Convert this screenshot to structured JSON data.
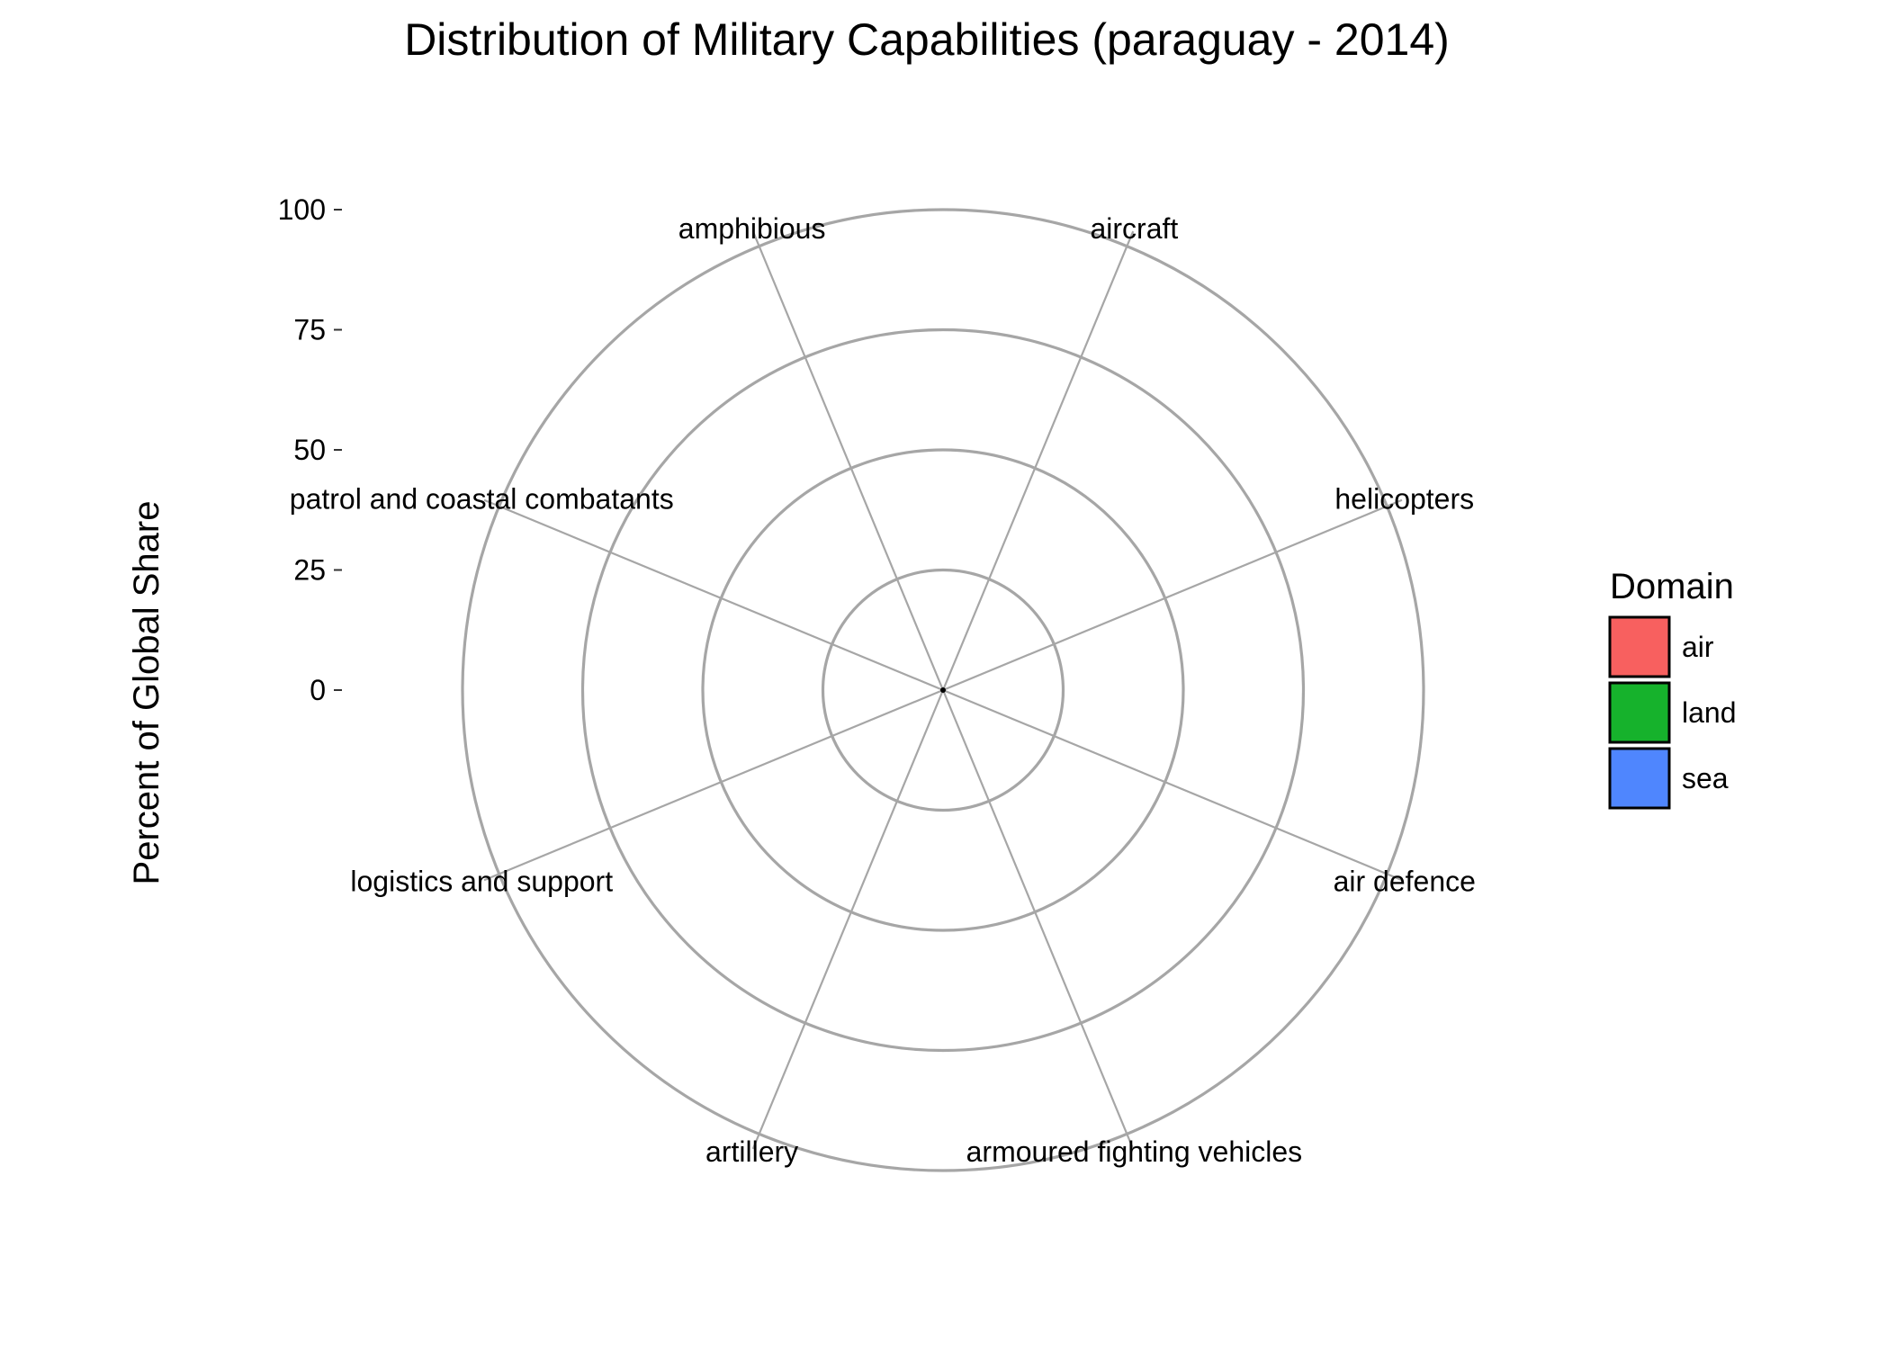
{
  "chart_data": {
    "type": "radar",
    "title": "Distribution of Military Capabilities (paraguay - 2014)",
    "ylabel": "Percent of Global Share",
    "xlabel": "",
    "ylim": [
      0,
      100
    ],
    "yticks": [
      0,
      25,
      50,
      75,
      100
    ],
    "ytick_labels": [
      "0",
      "25",
      "50",
      "75",
      "100"
    ],
    "grid": true,
    "categories": [
      "aircraft",
      "helicopters",
      "air defence",
      "armoured fighting vehicles",
      "artillery",
      "logistics and support",
      "patrol and coastal combatants",
      "amphibious"
    ],
    "series": [
      {
        "name": "air",
        "values": [
          0,
          0,
          0,
          0,
          0,
          0,
          0,
          0
        ]
      },
      {
        "name": "land",
        "values": [
          0,
          0,
          0,
          0,
          0,
          0,
          0,
          0
        ]
      },
      {
        "name": "sea",
        "values": [
          0,
          0,
          0,
          0,
          0,
          0,
          0,
          0
        ]
      }
    ],
    "legend": {
      "title": "Domain",
      "position": "right",
      "entries": [
        {
          "label": "air",
          "color": "#f8605f"
        },
        {
          "label": "land",
          "color": "#16b22c"
        },
        {
          "label": "sea",
          "color": "#4f86fe"
        }
      ]
    }
  }
}
